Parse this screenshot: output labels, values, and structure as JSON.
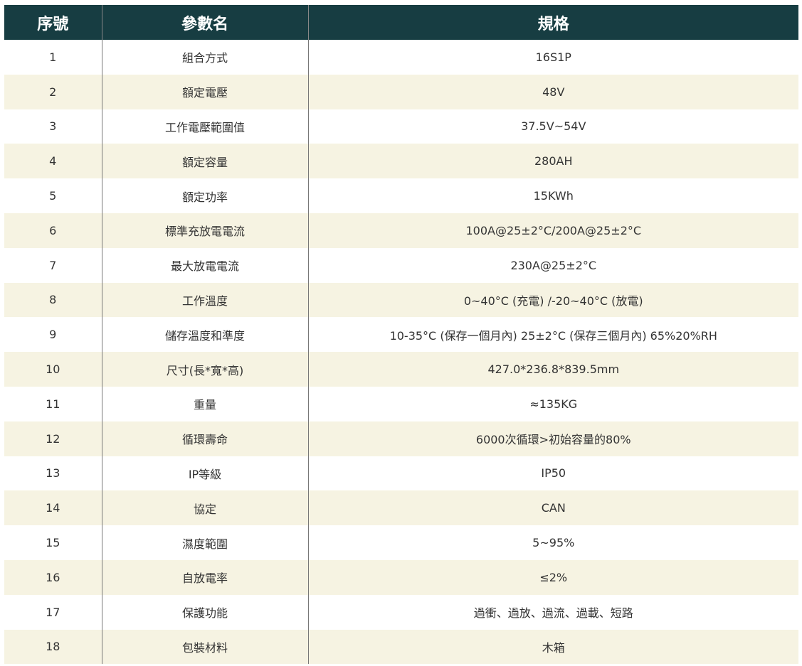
{
  "header": {
    "no": "序號",
    "param": "參數名",
    "spec": "規格"
  },
  "rows": [
    [
      "1",
      "組合方式",
      "16S1P"
    ],
    [
      "2",
      "額定電壓",
      "48V"
    ],
    [
      "3",
      "工作電壓範圍值",
      "37.5V~54V"
    ],
    [
      "4",
      "額定容量",
      "280AH"
    ],
    [
      "5",
      "額定功率",
      "15KWh"
    ],
    [
      "6",
      "標準充放電電流",
      "100A@25±2°C/200A@25±2°C"
    ],
    [
      "7",
      "最大放電電流",
      "230A@25±2°C"
    ],
    [
      "8",
      "工作溫度",
      "0~40°C (充電) /-20~40°C (放電)"
    ],
    [
      "9",
      "儲存溫度和準度",
      "10-35°C (保存一個月內) 25±2°C (保存三個月內) 65%20%RH"
    ],
    [
      "10",
      "尺寸(長*寬*高)",
      "427.0*236.8*839.5mm"
    ],
    [
      "11",
      "重量",
      "≈135KG"
    ],
    [
      "12",
      "循環壽命",
      "6000次循環>初始容量的80%"
    ],
    [
      "13",
      "IP等級",
      "IP50"
    ],
    [
      "14",
      "協定",
      "CAN"
    ],
    [
      "15",
      "濕度範圍",
      "5~95%"
    ],
    [
      "16",
      "自放電率",
      "≤2%"
    ],
    [
      "17",
      "保護功能",
      "過衝、過放、過流、過載、短路"
    ],
    [
      "18",
      "包裝材料",
      "木箱"
    ]
  ],
  "colors": {
    "header_bg": "#173d42",
    "stripe": "#f6f3e2"
  }
}
